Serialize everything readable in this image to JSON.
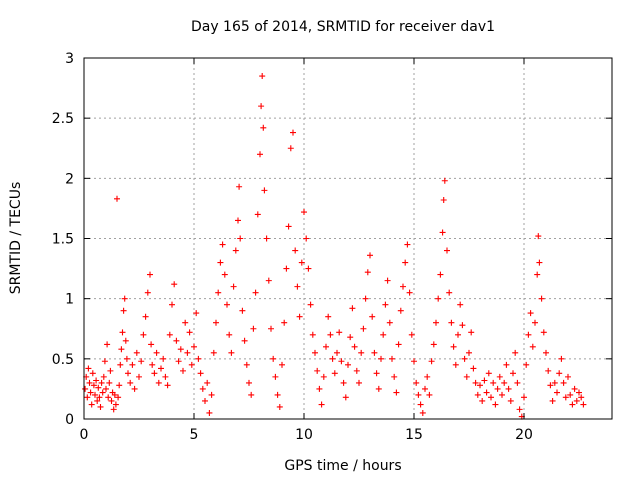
{
  "chart_data": {
    "type": "scatter",
    "title": "Day 165 of 2014, SRMTID for receiver dav1",
    "xlabel": "GPS time / hours",
    "ylabel": "SRMTID / TECUs",
    "xlim": [
      0,
      24
    ],
    "ylim": [
      0,
      3
    ],
    "xticks": [
      "0",
      "5",
      "10",
      "15",
      "20"
    ],
    "yticks": [
      "0",
      "0.5",
      "1",
      "1.5",
      "2",
      "2.5",
      "3"
    ],
    "grid": true,
    "marker": "+",
    "color": "#ff0000",
    "series": [
      {
        "name": "SRMTID",
        "points": [
          [
            0.05,
            0.25
          ],
          [
            0.1,
            0.35
          ],
          [
            0.15,
            0.18
          ],
          [
            0.2,
            0.42
          ],
          [
            0.25,
            0.3
          ],
          [
            0.3,
            0.22
          ],
          [
            0.35,
            0.12
          ],
          [
            0.4,
            0.38
          ],
          [
            0.45,
            0.28
          ],
          [
            0.5,
            0.2
          ],
          [
            0.55,
            0.32
          ],
          [
            0.6,
            0.15
          ],
          [
            0.65,
            0.26
          ],
          [
            0.7,
            0.18
          ],
          [
            0.75,
            0.1
          ],
          [
            0.8,
            0.3
          ],
          [
            0.85,
            0.22
          ],
          [
            0.9,
            0.35
          ],
          [
            0.95,
            0.48
          ],
          [
            1.0,
            0.25
          ],
          [
            1.05,
            0.62
          ],
          [
            1.1,
            0.18
          ],
          [
            1.15,
            0.3
          ],
          [
            1.2,
            0.4
          ],
          [
            1.25,
            0.15
          ],
          [
            1.3,
            0.22
          ],
          [
            1.35,
            0.08
          ],
          [
            1.4,
            0.2
          ],
          [
            1.45,
            0.12
          ],
          [
            1.5,
            1.83
          ],
          [
            1.55,
            0.18
          ],
          [
            1.6,
            0.28
          ],
          [
            1.65,
            0.45
          ],
          [
            1.7,
            0.58
          ],
          [
            1.75,
            0.72
          ],
          [
            1.8,
            0.9
          ],
          [
            1.85,
            1.0
          ],
          [
            1.9,
            0.65
          ],
          [
            1.95,
            0.5
          ],
          [
            2.0,
            0.38
          ],
          [
            2.1,
            0.3
          ],
          [
            2.2,
            0.45
          ],
          [
            2.3,
            0.25
          ],
          [
            2.4,
            0.55
          ],
          [
            2.5,
            0.35
          ],
          [
            2.6,
            0.48
          ],
          [
            2.7,
            0.7
          ],
          [
            2.8,
            0.85
          ],
          [
            2.9,
            1.05
          ],
          [
            3.0,
            1.2
          ],
          [
            3.05,
            0.62
          ],
          [
            3.1,
            0.45
          ],
          [
            3.2,
            0.38
          ],
          [
            3.3,
            0.55
          ],
          [
            3.4,
            0.3
          ],
          [
            3.5,
            0.42
          ],
          [
            3.6,
            0.5
          ],
          [
            3.7,
            0.35
          ],
          [
            3.8,
            0.28
          ],
          [
            3.9,
            0.7
          ],
          [
            4.0,
            0.95
          ],
          [
            4.1,
            1.12
          ],
          [
            4.2,
            0.65
          ],
          [
            4.3,
            0.48
          ],
          [
            4.4,
            0.58
          ],
          [
            4.5,
            0.4
          ],
          [
            4.6,
            0.8
          ],
          [
            4.7,
            0.55
          ],
          [
            4.8,
            0.72
          ],
          [
            4.9,
            0.45
          ],
          [
            5.0,
            0.6
          ],
          [
            5.1,
            0.88
          ],
          [
            5.2,
            0.5
          ],
          [
            5.3,
            0.38
          ],
          [
            5.4,
            0.25
          ],
          [
            5.5,
            0.15
          ],
          [
            5.6,
            0.3
          ],
          [
            5.7,
            0.05
          ],
          [
            5.8,
            0.2
          ],
          [
            5.9,
            0.55
          ],
          [
            6.0,
            0.8
          ],
          [
            6.1,
            1.05
          ],
          [
            6.2,
            1.3
          ],
          [
            6.3,
            1.45
          ],
          [
            6.4,
            1.2
          ],
          [
            6.5,
            0.95
          ],
          [
            6.6,
            0.7
          ],
          [
            6.7,
            0.55
          ],
          [
            6.8,
            1.1
          ],
          [
            6.9,
            1.4
          ],
          [
            7.0,
            1.65
          ],
          [
            7.05,
            1.93
          ],
          [
            7.1,
            1.5
          ],
          [
            7.2,
            0.9
          ],
          [
            7.3,
            0.65
          ],
          [
            7.4,
            0.45
          ],
          [
            7.5,
            0.3
          ],
          [
            7.6,
            0.2
          ],
          [
            7.7,
            0.75
          ],
          [
            7.8,
            1.05
          ],
          [
            7.9,
            1.7
          ],
          [
            8.0,
            2.2
          ],
          [
            8.05,
            2.6
          ],
          [
            8.1,
            2.85
          ],
          [
            8.15,
            2.42
          ],
          [
            8.2,
            1.9
          ],
          [
            8.3,
            1.5
          ],
          [
            8.4,
            1.15
          ],
          [
            8.5,
            0.75
          ],
          [
            8.6,
            0.5
          ],
          [
            8.7,
            0.35
          ],
          [
            8.8,
            0.2
          ],
          [
            8.9,
            0.1
          ],
          [
            9.0,
            0.45
          ],
          [
            9.1,
            0.8
          ],
          [
            9.2,
            1.25
          ],
          [
            9.3,
            1.6
          ],
          [
            9.4,
            2.25
          ],
          [
            9.5,
            2.38
          ],
          [
            9.6,
            1.4
          ],
          [
            9.7,
            1.1
          ],
          [
            9.8,
            0.85
          ],
          [
            9.9,
            1.3
          ],
          [
            10.0,
            1.72
          ],
          [
            10.1,
            1.5
          ],
          [
            10.2,
            1.25
          ],
          [
            10.3,
            0.95
          ],
          [
            10.4,
            0.7
          ],
          [
            10.5,
            0.55
          ],
          [
            10.6,
            0.4
          ],
          [
            10.7,
            0.25
          ],
          [
            10.8,
            0.12
          ],
          [
            10.9,
            0.35
          ],
          [
            11.0,
            0.6
          ],
          [
            11.1,
            0.85
          ],
          [
            11.2,
            0.7
          ],
          [
            11.3,
            0.5
          ],
          [
            11.4,
            0.38
          ],
          [
            11.5,
            0.55
          ],
          [
            11.6,
            0.72
          ],
          [
            11.7,
            0.48
          ],
          [
            11.8,
            0.3
          ],
          [
            11.9,
            0.18
          ],
          [
            12.0,
            0.45
          ],
          [
            12.1,
            0.68
          ],
          [
            12.2,
            0.92
          ],
          [
            12.3,
            0.6
          ],
          [
            12.4,
            0.4
          ],
          [
            12.5,
            0.3
          ],
          [
            12.6,
            0.55
          ],
          [
            12.7,
            0.75
          ],
          [
            12.8,
            1.0
          ],
          [
            12.9,
            1.22
          ],
          [
            13.0,
            1.36
          ],
          [
            13.1,
            0.85
          ],
          [
            13.2,
            0.55
          ],
          [
            13.3,
            0.38
          ],
          [
            13.4,
            0.25
          ],
          [
            13.5,
            0.5
          ],
          [
            13.6,
            0.7
          ],
          [
            13.7,
            0.95
          ],
          [
            13.8,
            1.15
          ],
          [
            13.9,
            0.8
          ],
          [
            14.0,
            0.5
          ],
          [
            14.1,
            0.35
          ],
          [
            14.2,
            0.22
          ],
          [
            14.3,
            0.62
          ],
          [
            14.4,
            0.9
          ],
          [
            14.5,
            1.1
          ],
          [
            14.6,
            1.3
          ],
          [
            14.7,
            1.45
          ],
          [
            14.8,
            1.05
          ],
          [
            14.9,
            0.7
          ],
          [
            15.0,
            0.48
          ],
          [
            15.1,
            0.3
          ],
          [
            15.2,
            0.2
          ],
          [
            15.3,
            0.12
          ],
          [
            15.4,
            0.05
          ],
          [
            15.5,
            0.25
          ],
          [
            15.6,
            0.35
          ],
          [
            15.7,
            0.2
          ],
          [
            15.8,
            0.48
          ],
          [
            15.9,
            0.62
          ],
          [
            16.0,
            0.8
          ],
          [
            16.1,
            1.0
          ],
          [
            16.2,
            1.2
          ],
          [
            16.3,
            1.55
          ],
          [
            16.35,
            1.82
          ],
          [
            16.4,
            1.98
          ],
          [
            16.5,
            1.4
          ],
          [
            16.6,
            1.05
          ],
          [
            16.7,
            0.8
          ],
          [
            16.8,
            0.6
          ],
          [
            16.9,
            0.45
          ],
          [
            17.0,
            0.7
          ],
          [
            17.1,
            0.95
          ],
          [
            17.2,
            0.78
          ],
          [
            17.3,
            0.5
          ],
          [
            17.4,
            0.35
          ],
          [
            17.5,
            0.55
          ],
          [
            17.6,
            0.72
          ],
          [
            17.7,
            0.42
          ],
          [
            17.8,
            0.3
          ],
          [
            17.9,
            0.2
          ],
          [
            18.0,
            0.28
          ],
          [
            18.1,
            0.15
          ],
          [
            18.2,
            0.32
          ],
          [
            18.3,
            0.22
          ],
          [
            18.4,
            0.38
          ],
          [
            18.5,
            0.18
          ],
          [
            18.6,
            0.3
          ],
          [
            18.7,
            0.12
          ],
          [
            18.8,
            0.25
          ],
          [
            18.9,
            0.35
          ],
          [
            19.0,
            0.2
          ],
          [
            19.1,
            0.3
          ],
          [
            19.2,
            0.45
          ],
          [
            19.3,
            0.25
          ],
          [
            19.4,
            0.15
          ],
          [
            19.5,
            0.38
          ],
          [
            19.6,
            0.55
          ],
          [
            19.7,
            0.3
          ],
          [
            19.8,
            0.08
          ],
          [
            19.9,
            0.02
          ],
          [
            20.0,
            0.18
          ],
          [
            20.1,
            0.45
          ],
          [
            20.2,
            0.7
          ],
          [
            20.3,
            0.88
          ],
          [
            20.4,
            0.6
          ],
          [
            20.5,
            0.8
          ],
          [
            20.6,
            1.2
          ],
          [
            20.65,
            1.52
          ],
          [
            20.7,
            1.3
          ],
          [
            20.8,
            1.0
          ],
          [
            20.9,
            0.72
          ],
          [
            21.0,
            0.55
          ],
          [
            21.1,
            0.4
          ],
          [
            21.2,
            0.28
          ],
          [
            21.3,
            0.15
          ],
          [
            21.4,
            0.3
          ],
          [
            21.5,
            0.22
          ],
          [
            21.6,
            0.38
          ],
          [
            21.7,
            0.5
          ],
          [
            21.8,
            0.3
          ],
          [
            21.9,
            0.18
          ],
          [
            22.0,
            0.35
          ],
          [
            22.1,
            0.2
          ],
          [
            22.2,
            0.12
          ],
          [
            22.3,
            0.25
          ],
          [
            22.4,
            0.15
          ],
          [
            22.5,
            0.22
          ],
          [
            22.6,
            0.18
          ],
          [
            22.7,
            0.12
          ]
        ]
      }
    ]
  }
}
